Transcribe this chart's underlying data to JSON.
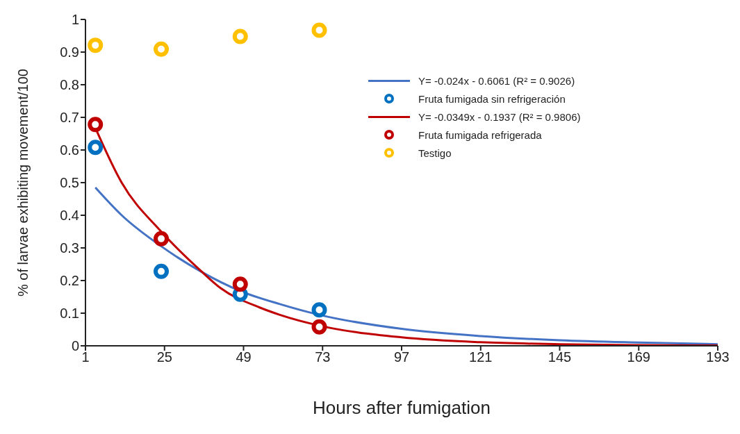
{
  "chart_data": {
    "type": "scatter",
    "xlabel": "Hours after fumigation",
    "ylabel": "% of larvae exhibiting  movement/100",
    "xlim": [
      1,
      193
    ],
    "xticks": [
      1,
      25,
      49,
      73,
      97,
      121,
      145,
      169,
      193
    ],
    "ylim": [
      0,
      1
    ],
    "yticks": [
      0,
      0.1,
      0.2,
      0.3,
      0.4,
      0.5,
      0.6,
      0.7,
      0.8,
      0.9,
      1
    ],
    "grid": false,
    "legend": "top right",
    "marker": "circle",
    "series": [
      {
        "name": "Y= -0.024x - 0.6061   (R² = 0.9026)",
        "type": "line",
        "marker": "none",
        "color": "#4472c4",
        "x": [
          4,
          12,
          24,
          36,
          48,
          60,
          72,
          97,
          121,
          145,
          169,
          193
        ],
        "values": [
          0.485,
          0.4,
          0.305,
          0.228,
          0.168,
          0.128,
          0.095,
          0.052,
          0.03,
          0.017,
          0.01,
          0.005
        ]
      },
      {
        "name": "Fruta fumigada sin refrigeración",
        "color": "#0070c0",
        "x": [
          4,
          24,
          48,
          72
        ],
        "values": [
          0.608,
          0.228,
          0.158,
          0.11
        ]
      },
      {
        "name": "Y= -0.0349x - 0.1937  (R² = 0.9806)",
        "type": "line",
        "marker": "none",
        "color": "#c00000",
        "x": [
          4,
          12,
          24,
          36,
          42,
          54,
          60,
          72,
          97,
          121,
          145,
          169,
          193
        ],
        "values": [
          0.668,
          0.5,
          0.35,
          0.23,
          0.177,
          0.117,
          0.095,
          0.062,
          0.026,
          0.011,
          0.005,
          0.002,
          0.001
        ]
      },
      {
        "name": "Fruta fumigada refrigerada",
        "color": "#c00000",
        "x": [
          4,
          24,
          48,
          72
        ],
        "values": [
          0.678,
          0.328,
          0.189,
          0.058
        ]
      },
      {
        "name": "Testigo",
        "color": "#ffc000",
        "x": [
          4,
          24,
          48,
          72
        ],
        "values": [
          0.921,
          0.909,
          0.948,
          0.967
        ]
      }
    ]
  }
}
